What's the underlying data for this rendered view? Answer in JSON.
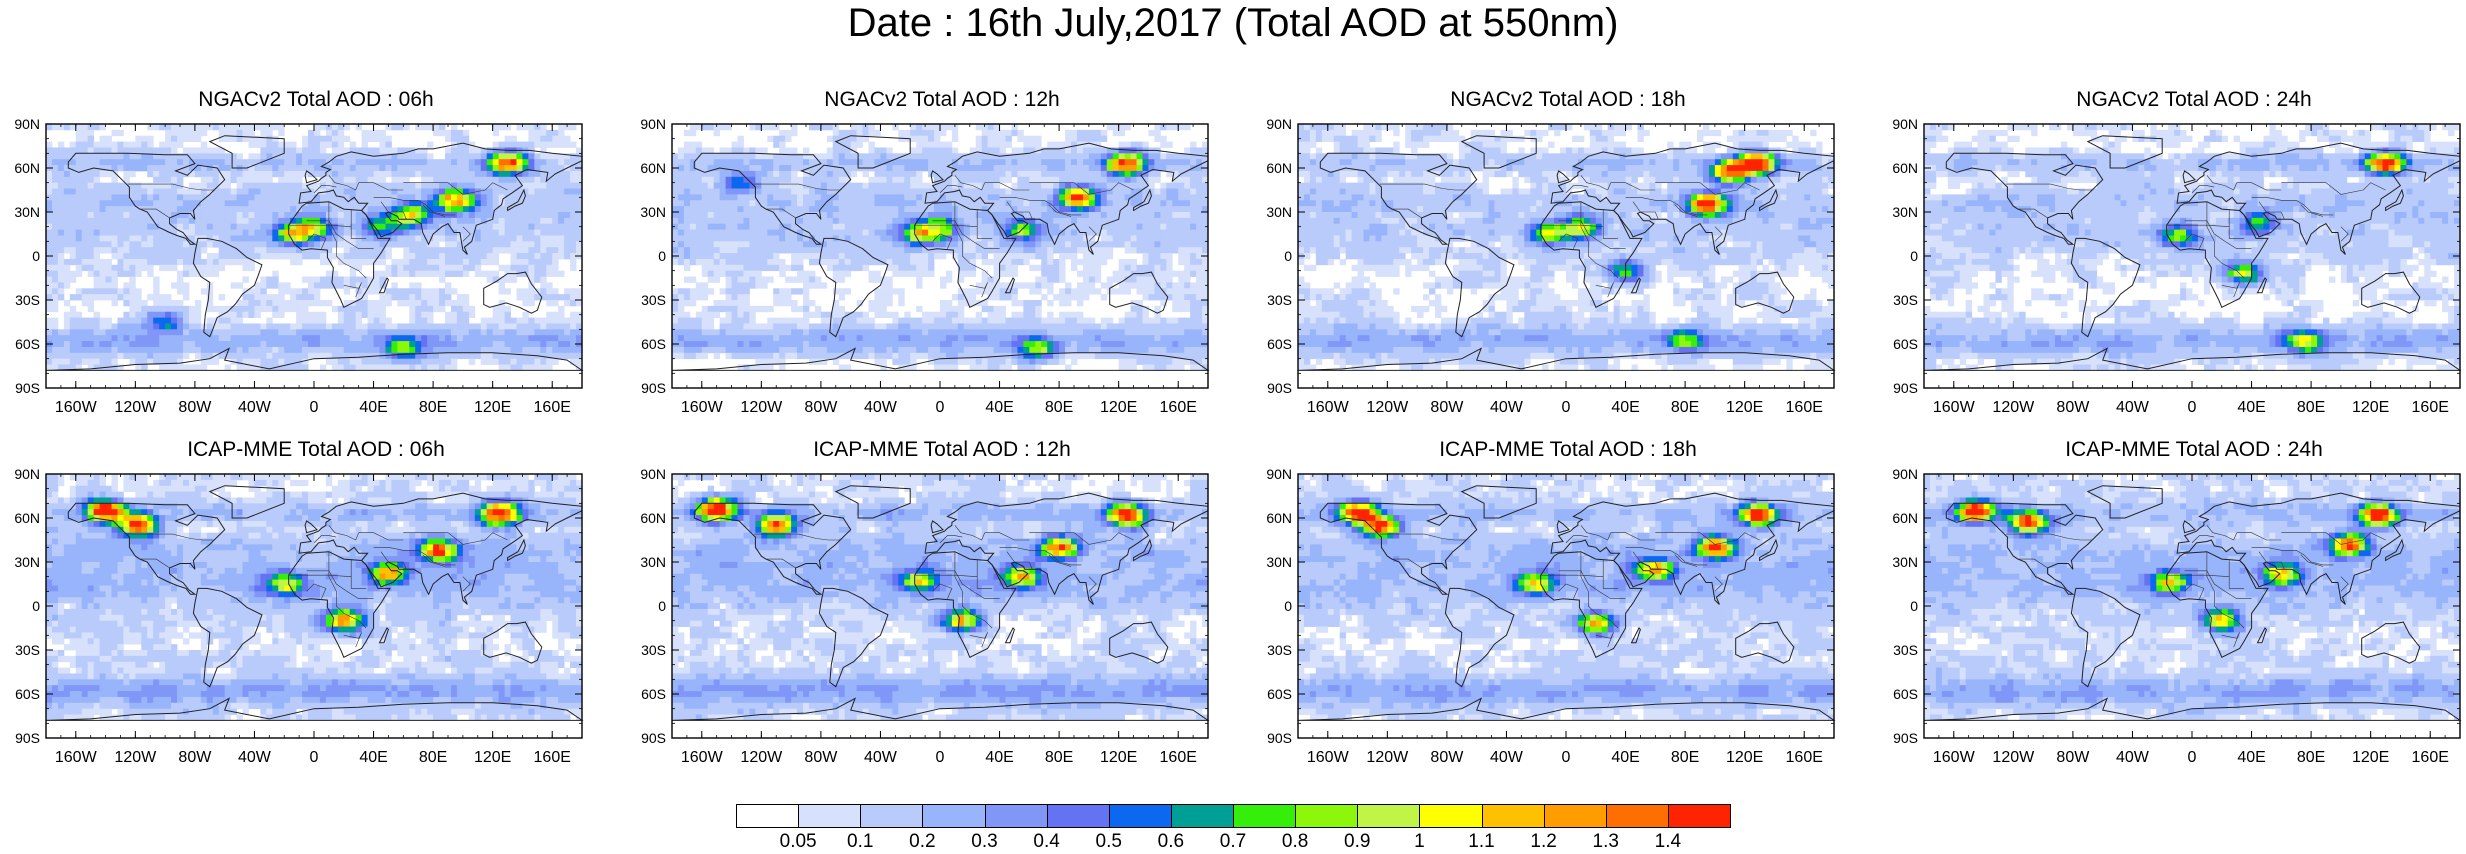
{
  "title": "Date : 16th July,2017 (Total AOD at 550nm)",
  "panels": [
    {
      "title": "NGACv2 Total AOD : 06h",
      "model": "NGACv2",
      "lead": "06h"
    },
    {
      "title": "NGACv2 Total AOD : 12h",
      "model": "NGACv2",
      "lead": "12h"
    },
    {
      "title": "NGACv2 Total AOD : 18h",
      "model": "NGACv2",
      "lead": "18h"
    },
    {
      "title": "NGACv2 Total AOD : 24h",
      "model": "NGACv2",
      "lead": "24h"
    },
    {
      "title": "ICAP-MME Total AOD : 06h",
      "model": "ICAP-MME",
      "lead": "06h"
    },
    {
      "title": "ICAP-MME Total AOD : 12h",
      "model": "ICAP-MME",
      "lead": "12h"
    },
    {
      "title": "ICAP-MME Total AOD : 18h",
      "model": "ICAP-MME",
      "lead": "18h"
    },
    {
      "title": "ICAP-MME Total AOD : 24h",
      "model": "ICAP-MME",
      "lead": "24h"
    }
  ],
  "axes": {
    "lat_labels": [
      "90N",
      "60N",
      "30N",
      "0",
      "30S",
      "60S",
      "90S"
    ],
    "lat_values": [
      90,
      60,
      30,
      0,
      -30,
      -60,
      -90
    ],
    "lon_labels": [
      "160W",
      "120W",
      "80W",
      "40W",
      "0",
      "40E",
      "80E",
      "120E",
      "160E"
    ],
    "lon_values": [
      -160,
      -120,
      -80,
      -40,
      0,
      40,
      80,
      120,
      160
    ]
  },
  "colorbar": {
    "colors": [
      "#ffffff",
      "#d7e1fb",
      "#b9cbfb",
      "#98b4fa",
      "#8097f8",
      "#6473f2",
      "#0c68ee",
      "#009f96",
      "#35ee0a",
      "#8cf70a",
      "#c0f548",
      "#ffff00",
      "#ffc000",
      "#ff9c00",
      "#ff6e00",
      "#ff2300"
    ],
    "labels": [
      "0.05",
      "0.1",
      "0.2",
      "0.3",
      "0.4",
      "0.5",
      "0.6",
      "0.7",
      "0.8",
      "0.9",
      "1",
      "1.1",
      "1.2",
      "1.3",
      "1.4"
    ]
  },
  "chart_data": {
    "type": "heatmap",
    "title": "Date : 16th July,2017 (Total AOD at 550nm)",
    "variable": "Total AOD at 550nm",
    "date": "16th July,2017",
    "xlabel": "",
    "ylabel": "",
    "xlim": [
      -180,
      180
    ],
    "ylim": [
      -90,
      90
    ],
    "levels": [
      0.05,
      0.1,
      0.2,
      0.3,
      0.4,
      0.5,
      0.6,
      0.7,
      0.8,
      0.9,
      1,
      1.1,
      1.2,
      1.3,
      1.4
    ],
    "panels": [
      {
        "title": "NGACv2 Total AOD : 06h",
        "plumes": [
          {
            "lon": -15,
            "lat": 15,
            "aod": 0.8
          },
          {
            "lon": 0,
            "lat": 19,
            "aod": 0.7
          },
          {
            "lon": 45,
            "lat": 20,
            "aod": 0.5
          },
          {
            "lon": 65,
            "lat": 28,
            "aod": 0.9
          },
          {
            "lon": 130,
            "lat": 63,
            "aod": 1.2
          },
          {
            "lon": 95,
            "lat": 38,
            "aod": 1.1
          },
          {
            "lon": 60,
            "lat": -63,
            "aod": 0.6
          },
          {
            "lon": -100,
            "lat": -45,
            "aod": 0.4
          }
        ]
      },
      {
        "title": "NGACv2 Total AOD : 12h",
        "plumes": [
          {
            "lon": -15,
            "lat": 15,
            "aod": 0.8
          },
          {
            "lon": 0,
            "lat": 19,
            "aod": 0.7
          },
          {
            "lon": 55,
            "lat": 18,
            "aod": 0.6
          },
          {
            "lon": 125,
            "lat": 63,
            "aod": 1.3
          },
          {
            "lon": 93,
            "lat": 40,
            "aod": 1.2
          },
          {
            "lon": 65,
            "lat": -63,
            "aod": 0.6
          },
          {
            "lon": -135,
            "lat": 50,
            "aod": 0.4
          }
        ]
      },
      {
        "title": "NGACv2 Total AOD : 18h",
        "plumes": [
          {
            "lon": -12,
            "lat": 15,
            "aod": 0.7
          },
          {
            "lon": 10,
            "lat": 19,
            "aod": 0.8
          },
          {
            "lon": 40,
            "lat": -10,
            "aod": 0.7
          },
          {
            "lon": 95,
            "lat": 35,
            "aod": 1.4
          },
          {
            "lon": 128,
            "lat": 63,
            "aod": 1.4
          },
          {
            "lon": 110,
            "lat": 57,
            "aod": 1.2
          },
          {
            "lon": 80,
            "lat": -57,
            "aod": 0.6
          }
        ]
      },
      {
        "title": "NGACv2 Total AOD : 24h",
        "plumes": [
          {
            "lon": -10,
            "lat": 14,
            "aod": 0.6
          },
          {
            "lon": 45,
            "lat": 22,
            "aod": 0.5
          },
          {
            "lon": 35,
            "lat": -12,
            "aod": 0.8
          },
          {
            "lon": 130,
            "lat": 63,
            "aod": 1.3
          },
          {
            "lon": 75,
            "lat": -58,
            "aod": 0.7
          }
        ]
      },
      {
        "title": "ICAP-MME Total AOD : 06h",
        "plumes": [
          {
            "lon": -140,
            "lat": 65,
            "aod": 1.4
          },
          {
            "lon": -118,
            "lat": 55,
            "aod": 1.3
          },
          {
            "lon": -20,
            "lat": 15,
            "aod": 0.8
          },
          {
            "lon": 20,
            "lat": -10,
            "aod": 1.1
          },
          {
            "lon": 50,
            "lat": 22,
            "aod": 0.9
          },
          {
            "lon": 83,
            "lat": 38,
            "aod": 1.2
          },
          {
            "lon": 125,
            "lat": 63,
            "aod": 1.4
          }
        ]
      },
      {
        "title": "ICAP-MME Total AOD : 12h",
        "plumes": [
          {
            "lon": -150,
            "lat": 66,
            "aod": 1.4
          },
          {
            "lon": -110,
            "lat": 55,
            "aod": 1.2
          },
          {
            "lon": -15,
            "lat": 17,
            "aod": 0.8
          },
          {
            "lon": 15,
            "lat": -10,
            "aod": 1.0
          },
          {
            "lon": 55,
            "lat": 20,
            "aod": 0.9
          },
          {
            "lon": 80,
            "lat": 40,
            "aod": 1.1
          },
          {
            "lon": 125,
            "lat": 62,
            "aod": 1.4
          }
        ]
      },
      {
        "title": "ICAP-MME Total AOD : 18h",
        "plumes": [
          {
            "lon": -140,
            "lat": 64,
            "aod": 1.3
          },
          {
            "lon": -125,
            "lat": 54,
            "aod": 1.2
          },
          {
            "lon": -20,
            "lat": 15,
            "aod": 0.8
          },
          {
            "lon": 20,
            "lat": -12,
            "aod": 1.0
          },
          {
            "lon": 60,
            "lat": 25,
            "aod": 0.9
          },
          {
            "lon": 100,
            "lat": 40,
            "aod": 1.2
          },
          {
            "lon": 130,
            "lat": 62,
            "aod": 1.3
          }
        ]
      },
      {
        "title": "ICAP-MME Total AOD : 24h",
        "plumes": [
          {
            "lon": -145,
            "lat": 65,
            "aod": 1.4
          },
          {
            "lon": -110,
            "lat": 57,
            "aod": 1.2
          },
          {
            "lon": -15,
            "lat": 16,
            "aod": 0.8
          },
          {
            "lon": 20,
            "lat": -10,
            "aod": 0.9
          },
          {
            "lon": 60,
            "lat": 22,
            "aod": 0.9
          },
          {
            "lon": 105,
            "lat": 42,
            "aod": 1.1
          },
          {
            "lon": 125,
            "lat": 62,
            "aod": 1.4
          }
        ]
      }
    ]
  }
}
